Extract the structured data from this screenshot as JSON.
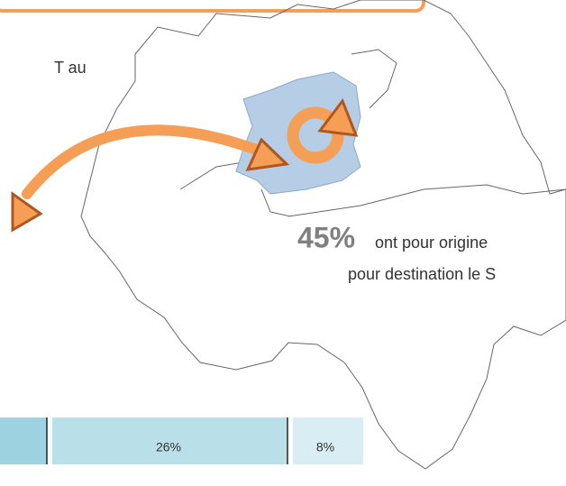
{
  "header_fragment": "T au",
  "stat": {
    "value": "45%",
    "line1": "ont pour origine",
    "line2": "pour destination le S"
  },
  "bar": {
    "segments": [
      "26%",
      "8%"
    ]
  }
}
